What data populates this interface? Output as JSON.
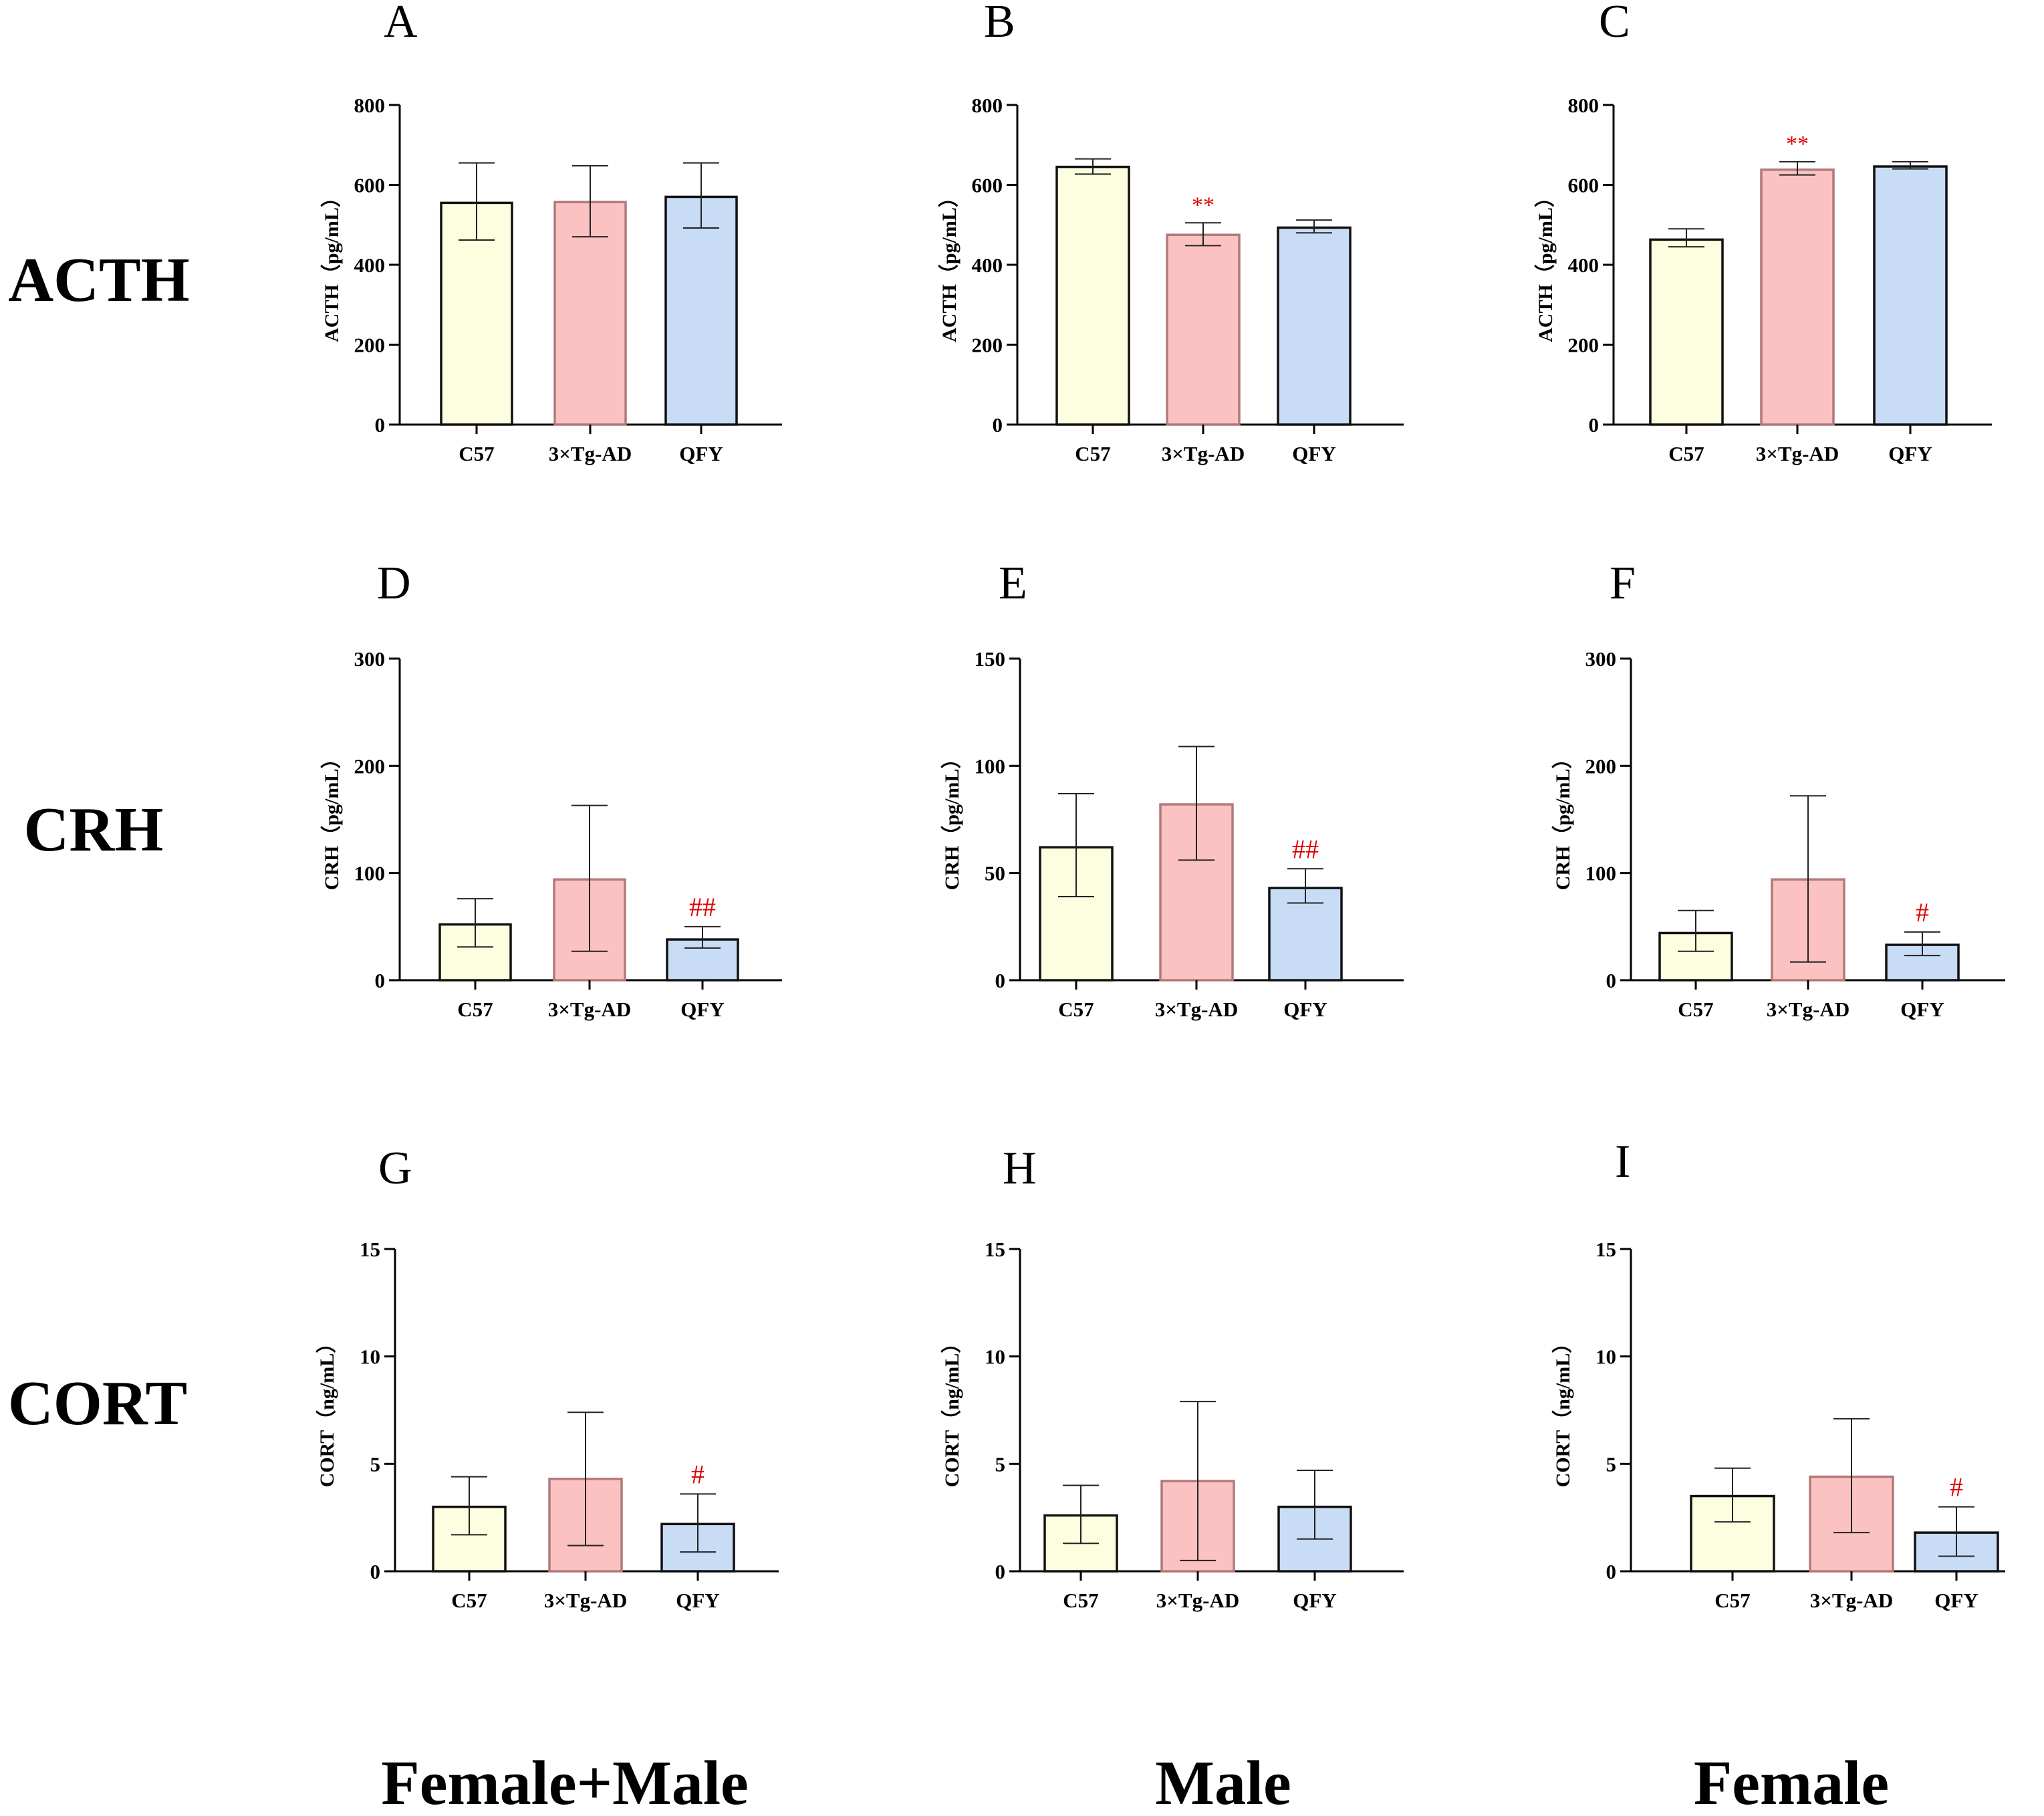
{
  "figure": {
    "row_labels": [
      "ACTH",
      "CRH",
      "CORT"
    ],
    "column_labels": [
      "Female+Male",
      "Male",
      "Female"
    ],
    "colors": {
      "C57": "#fdfde0",
      "3×Tg-AD": "#fcc2c2",
      "QFY": "#c8dcf6",
      "bar_edge_default": "#111111",
      "bar_edge_tg": "#b07a7a",
      "significance": "#e00000"
    }
  },
  "chart_data": [
    {
      "panel": "A",
      "type": "bar",
      "row": "ACTH",
      "column": "Female+Male",
      "ylabel": "ACTH（pg/mL）",
      "ylim": [
        0,
        800
      ],
      "yticks": [
        0,
        200,
        400,
        600,
        800
      ],
      "categories": [
        "C57",
        "3×Tg-AD",
        "QFY"
      ],
      "values": [
        555,
        557,
        570
      ],
      "error_low": [
        462,
        470,
        492
      ],
      "error_high": [
        655,
        648,
        655
      ],
      "annotations": [
        "",
        "",
        ""
      ]
    },
    {
      "panel": "B",
      "type": "bar",
      "row": "ACTH",
      "column": "Male",
      "ylabel": "ACTH（pg/mL）",
      "ylim": [
        0,
        800
      ],
      "yticks": [
        0,
        200,
        400,
        600,
        800
      ],
      "categories": [
        "C57",
        "3×Tg-AD",
        "QFY"
      ],
      "values": [
        645,
        475,
        493
      ],
      "error_low": [
        627,
        448,
        480
      ],
      "error_high": [
        665,
        505,
        512
      ],
      "annotations": [
        "",
        "**",
        ""
      ]
    },
    {
      "panel": "C",
      "type": "bar",
      "row": "ACTH",
      "column": "Female",
      "ylabel": "ACTH（pg/mL）",
      "ylim": [
        0,
        800
      ],
      "yticks": [
        0,
        200,
        400,
        600,
        800
      ],
      "categories": [
        "C57",
        "3×Tg-AD",
        "QFY"
      ],
      "values": [
        463,
        638,
        646
      ],
      "error_low": [
        445,
        625,
        640
      ],
      "error_high": [
        490,
        658,
        658
      ],
      "annotations": [
        "",
        "**",
        ""
      ]
    },
    {
      "panel": "D",
      "type": "bar",
      "row": "CRH",
      "column": "Female+Male",
      "ylabel": "CRH（pg/mL）",
      "ylim": [
        0,
        300
      ],
      "yticks": [
        0,
        100,
        200,
        300
      ],
      "categories": [
        "C57",
        "3×Tg-AD",
        "QFY"
      ],
      "values": [
        52,
        94,
        38
      ],
      "error_low": [
        31,
        27,
        30
      ],
      "error_high": [
        76,
        163,
        50
      ],
      "annotations": [
        "",
        "",
        "##"
      ]
    },
    {
      "panel": "E",
      "type": "bar",
      "row": "CRH",
      "column": "Male",
      "ylabel": "CRH（pg/mL）",
      "ylim": [
        0,
        150
      ],
      "yticks": [
        0,
        50,
        100,
        150
      ],
      "categories": [
        "C57",
        "3×Tg-AD",
        "QFY"
      ],
      "values": [
        62,
        82,
        43
      ],
      "error_low": [
        39,
        56,
        36
      ],
      "error_high": [
        87,
        109,
        52
      ],
      "annotations": [
        "",
        "",
        "##"
      ]
    },
    {
      "panel": "F",
      "type": "bar",
      "row": "CRH",
      "column": "Female",
      "ylabel": "CRH（pg/mL）",
      "ylim": [
        0,
        300
      ],
      "yticks": [
        0,
        100,
        200,
        300
      ],
      "categories": [
        "C57",
        "3×Tg-AD",
        "QFY"
      ],
      "values": [
        44,
        94,
        33
      ],
      "error_low": [
        27,
        17,
        23
      ],
      "error_high": [
        65,
        172,
        45
      ],
      "annotations": [
        "",
        "",
        "#"
      ]
    },
    {
      "panel": "G",
      "type": "bar",
      "row": "CORT",
      "column": "Female+Male",
      "ylabel": "CORT（ng/mL）",
      "ylim": [
        0,
        15
      ],
      "yticks": [
        0,
        5,
        10,
        15
      ],
      "categories": [
        "C57",
        "3×Tg-AD",
        "QFY"
      ],
      "values": [
        3.0,
        4.3,
        2.2
      ],
      "error_low": [
        1.7,
        1.2,
        0.9
      ],
      "error_high": [
        4.4,
        7.4,
        3.6
      ],
      "annotations": [
        "",
        "",
        "#"
      ]
    },
    {
      "panel": "H",
      "type": "bar",
      "row": "CORT",
      "column": "Male",
      "ylabel": "CORT（ng/mL）",
      "ylim": [
        0,
        15
      ],
      "yticks": [
        0,
        5,
        10,
        15
      ],
      "categories": [
        "C57",
        "3×Tg-AD",
        "QFY"
      ],
      "values": [
        2.6,
        4.2,
        3.0
      ],
      "error_low": [
        1.3,
        0.5,
        1.5
      ],
      "error_high": [
        4.0,
        7.9,
        4.7
      ],
      "annotations": [
        "",
        "",
        ""
      ]
    },
    {
      "panel": "I",
      "type": "bar",
      "row": "CORT",
      "column": "Female",
      "ylabel": "CORT（ng/mL）",
      "ylim": [
        0,
        15
      ],
      "yticks": [
        0,
        5,
        10,
        15
      ],
      "categories": [
        "C57",
        "3×Tg-AD",
        "QFY"
      ],
      "values": [
        3.5,
        4.4,
        1.8
      ],
      "error_low": [
        2.3,
        1.8,
        0.7
      ],
      "error_high": [
        4.8,
        7.1,
        3.0
      ],
      "annotations": [
        "",
        "",
        "#"
      ]
    }
  ]
}
